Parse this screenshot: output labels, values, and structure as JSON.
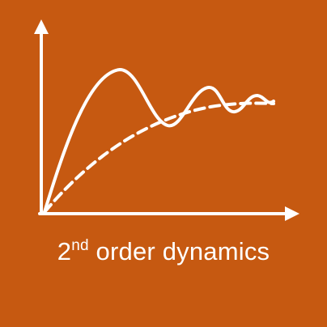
{
  "caption": {
    "lead": "2",
    "superscript": "nd",
    "rest": " order dynamics"
  },
  "colors": {
    "background": "#c65911",
    "foreground": "#ffffff"
  }
}
